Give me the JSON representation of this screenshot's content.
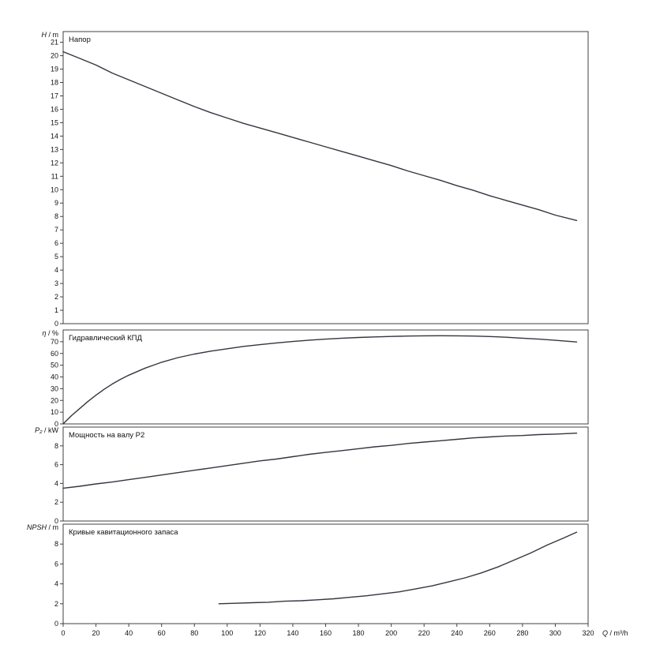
{
  "colors": {
    "curve": "#35353f",
    "frame": "#404040",
    "text": "#111111",
    "background": "#ffffff"
  },
  "x_axis": {
    "label": "Q / m³/h",
    "label_parts": [
      {
        "text": "Q",
        "italic": true
      },
      {
        "text": " / m³/h",
        "italic": false
      }
    ],
    "min": 0,
    "max": 320,
    "ticks": [
      0,
      20,
      40,
      60,
      80,
      100,
      120,
      140,
      160,
      180,
      200,
      220,
      240,
      260,
      280,
      300,
      320
    ]
  },
  "chart_data": [
    {
      "type": "line",
      "title": "Напор",
      "ylabel": "H / m",
      "axis_label_parts": [
        {
          "text": "H",
          "italic": true
        },
        {
          "text": " / m",
          "italic": false
        }
      ],
      "ymin": 0,
      "ymax": 21.8,
      "yticks": [
        0,
        1,
        2,
        3,
        4,
        5,
        6,
        7,
        8,
        9,
        10,
        11,
        12,
        13,
        14,
        15,
        16,
        17,
        18,
        19,
        20,
        21
      ],
      "series": [
        {
          "name": "Напор",
          "points": [
            [
              0,
              20.3
            ],
            [
              10,
              19.8
            ],
            [
              20,
              19.3
            ],
            [
              30,
              18.7
            ],
            [
              40,
              18.2
            ],
            [
              50,
              17.7
            ],
            [
              60,
              17.2
            ],
            [
              70,
              16.7
            ],
            [
              80,
              16.2
            ],
            [
              90,
              15.75
            ],
            [
              100,
              15.35
            ],
            [
              110,
              14.95
            ],
            [
              120,
              14.6
            ],
            [
              130,
              14.25
            ],
            [
              140,
              13.9
            ],
            [
              150,
              13.55
            ],
            [
              160,
              13.2
            ],
            [
              170,
              12.85
            ],
            [
              180,
              12.5
            ],
            [
              190,
              12.15
            ],
            [
              200,
              11.8
            ],
            [
              210,
              11.4
            ],
            [
              220,
              11.05
            ],
            [
              230,
              10.7
            ],
            [
              240,
              10.3
            ],
            [
              250,
              9.95
            ],
            [
              260,
              9.55
            ],
            [
              270,
              9.2
            ],
            [
              280,
              8.85
            ],
            [
              290,
              8.5
            ],
            [
              300,
              8.1
            ],
            [
              313,
              7.7
            ]
          ]
        }
      ]
    },
    {
      "type": "line",
      "title": "Гидравлический КПД",
      "ylabel": "η / %",
      "axis_label_parts": [
        {
          "text": "η",
          "italic": true
        },
        {
          "text": " / %",
          "italic": false
        }
      ],
      "ymin": 0,
      "ymax": 80,
      "yticks": [
        0,
        10,
        20,
        30,
        40,
        50,
        60,
        70
      ],
      "series": [
        {
          "name": "Гидравлический КПД",
          "points": [
            [
              0,
              0
            ],
            [
              5,
              7
            ],
            [
              10,
              13
            ],
            [
              15,
              19
            ],
            [
              20,
              24.5
            ],
            [
              25,
              29.5
            ],
            [
              30,
              34
            ],
            [
              35,
              38
            ],
            [
              40,
              41.5
            ],
            [
              45,
              44.5
            ],
            [
              50,
              47.5
            ],
            [
              55,
              50
            ],
            [
              60,
              52.5
            ],
            [
              70,
              56.5
            ],
            [
              80,
              59.5
            ],
            [
              90,
              62
            ],
            [
              100,
              64
            ],
            [
              110,
              66
            ],
            [
              120,
              67.5
            ],
            [
              130,
              69
            ],
            [
              140,
              70.2
            ],
            [
              150,
              71.3
            ],
            [
              160,
              72.2
            ],
            [
              170,
              73
            ],
            [
              180,
              73.6
            ],
            [
              190,
              74.1
            ],
            [
              200,
              74.5
            ],
            [
              210,
              74.8
            ],
            [
              220,
              75
            ],
            [
              230,
              75.1
            ],
            [
              240,
              75
            ],
            [
              250,
              74.8
            ],
            [
              260,
              74.4
            ],
            [
              270,
              73.8
            ],
            [
              280,
              73
            ],
            [
              290,
              72.2
            ],
            [
              300,
              71.2
            ],
            [
              313,
              69.8
            ]
          ]
        }
      ]
    },
    {
      "type": "line",
      "title": "Мощность на валу P2",
      "ylabel": "P₂ / kW",
      "axis_label_parts": [
        {
          "text": "P₂",
          "italic": true
        },
        {
          "text": " / kW",
          "italic": false
        }
      ],
      "ymin": 0,
      "ymax": 10,
      "yticks": [
        0,
        2,
        4,
        6,
        8
      ],
      "series": [
        {
          "name": "Мощность на валу P2",
          "points": [
            [
              0,
              3.5
            ],
            [
              10,
              3.7
            ],
            [
              20,
              3.95
            ],
            [
              30,
              4.15
            ],
            [
              40,
              4.4
            ],
            [
              50,
              4.65
            ],
            [
              60,
              4.9
            ],
            [
              70,
              5.15
            ],
            [
              80,
              5.4
            ],
            [
              90,
              5.65
            ],
            [
              100,
              5.9
            ],
            [
              110,
              6.15
            ],
            [
              120,
              6.4
            ],
            [
              130,
              6.6
            ],
            [
              140,
              6.85
            ],
            [
              150,
              7.1
            ],
            [
              160,
              7.3
            ],
            [
              170,
              7.5
            ],
            [
              180,
              7.7
            ],
            [
              190,
              7.9
            ],
            [
              200,
              8.05
            ],
            [
              210,
              8.25
            ],
            [
              220,
              8.4
            ],
            [
              230,
              8.55
            ],
            [
              240,
              8.7
            ],
            [
              250,
              8.85
            ],
            [
              260,
              8.95
            ],
            [
              270,
              9.05
            ],
            [
              280,
              9.1
            ],
            [
              290,
              9.2
            ],
            [
              300,
              9.25
            ],
            [
              313,
              9.35
            ]
          ]
        }
      ]
    },
    {
      "type": "line",
      "title": "Кривые кавитационного запаса",
      "ylabel": "NPSH / m",
      "axis_label_parts": [
        {
          "text": "NPSH",
          "italic": true
        },
        {
          "text": " / m",
          "italic": false
        }
      ],
      "ymin": 0,
      "ymax": 10,
      "yticks": [
        0,
        2,
        4,
        6,
        8
      ],
      "series": [
        {
          "name": "Кривые кавитационного запаса",
          "points": [
            [
              95,
              2.0
            ],
            [
              105,
              2.05
            ],
            [
              115,
              2.1
            ],
            [
              125,
              2.15
            ],
            [
              135,
              2.25
            ],
            [
              145,
              2.3
            ],
            [
              155,
              2.4
            ],
            [
              165,
              2.5
            ],
            [
              175,
              2.65
            ],
            [
              185,
              2.8
            ],
            [
              195,
              3.0
            ],
            [
              205,
              3.2
            ],
            [
              215,
              3.5
            ],
            [
              225,
              3.8
            ],
            [
              235,
              4.2
            ],
            [
              245,
              4.6
            ],
            [
              255,
              5.1
            ],
            [
              265,
              5.7
            ],
            [
              275,
              6.4
            ],
            [
              285,
              7.1
            ],
            [
              295,
              7.9
            ],
            [
              305,
              8.6
            ],
            [
              313,
              9.2
            ]
          ]
        }
      ]
    }
  ]
}
